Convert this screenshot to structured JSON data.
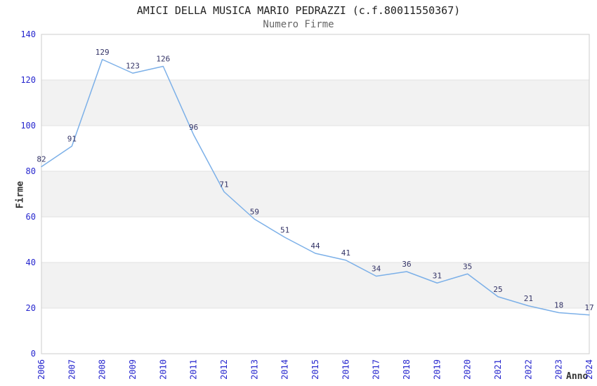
{
  "header": {
    "title": "AMICI DELLA MUSICA MARIO PEDRAZZI (c.f.80011550367)",
    "subtitle": "Numero Firme"
  },
  "chart_data": {
    "type": "line",
    "title": "AMICI DELLA MUSICA MARIO PEDRAZZI (c.f.80011550367)",
    "subtitle": "Numero Firme",
    "xlabel": "Anno",
    "ylabel": "Firme",
    "categories": [
      "2006",
      "2007",
      "2008",
      "2009",
      "2010",
      "2011",
      "2012",
      "2013",
      "2014",
      "2015",
      "2016",
      "2017",
      "2018",
      "2019",
      "2020",
      "2021",
      "2022",
      "2023",
      "2024"
    ],
    "values": [
      82,
      91,
      129,
      123,
      126,
      96,
      71,
      59,
      51,
      44,
      41,
      34,
      36,
      31,
      35,
      25,
      21,
      18,
      17
    ],
    "ylim": [
      0,
      140
    ],
    "ytick_step": 20,
    "yticks": [
      0,
      20,
      40,
      60,
      80,
      100,
      120,
      140
    ],
    "grid": true,
    "alternating_bands": true,
    "legend": "none",
    "data_labels_shown": true,
    "colors": {
      "line": "#7CB0E8",
      "data_label": "#333366",
      "tick_label": "#2626CE",
      "band": "#F2F2F2",
      "gridline": "#E2E2E2",
      "plot_border": "#CCCCCC",
      "title": "#222222",
      "subtitle": "#666666",
      "axis_title": "#333333"
    }
  }
}
